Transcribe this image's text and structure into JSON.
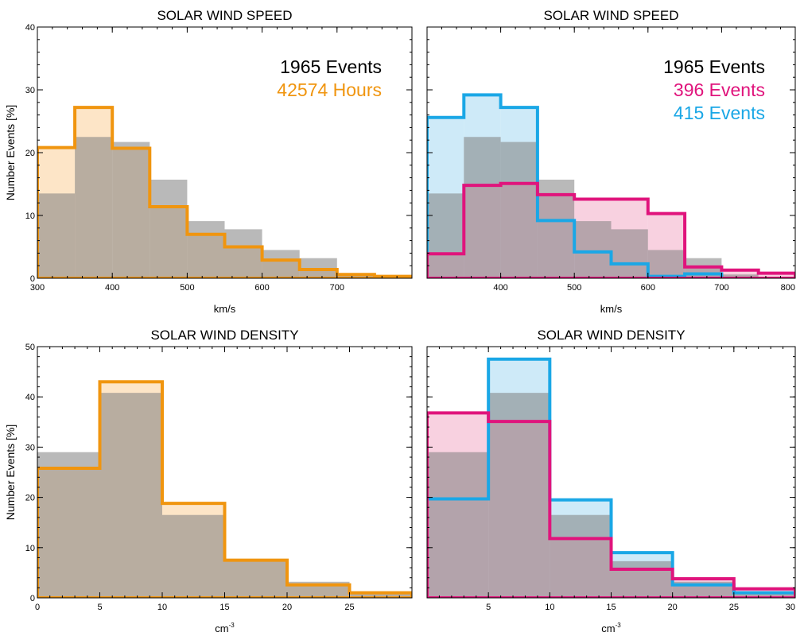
{
  "chart_data": [
    {
      "type": "bar",
      "title": "SOLAR WIND SPEED",
      "xlabel": "km/s",
      "ylabel": "Number Events [%]",
      "xlim": [
        300,
        800
      ],
      "ylim": [
        0,
        40
      ],
      "bin_edges": [
        300,
        350,
        400,
        450,
        500,
        550,
        600,
        650,
        700,
        750,
        800
      ],
      "xticks": [
        300,
        400,
        500,
        600,
        700
      ],
      "yticks": [
        0,
        10,
        20,
        30,
        40
      ],
      "annotations": [
        {
          "text": "1965 Events",
          "color": "#000000"
        },
        {
          "text": "42574 Hours",
          "color": "#f0950f"
        }
      ],
      "series": [
        {
          "color": "#808080",
          "style": "filled",
          "values": [
            13.5,
            22.5,
            21.7,
            15.7,
            9.1,
            7.8,
            4.5,
            3.2,
            0.6,
            0.1
          ]
        },
        {
          "color": "#f0950f",
          "style": "outlined-light-fill",
          "values": [
            20.8,
            27.2,
            20.7,
            11.4,
            7.0,
            5.0,
            2.9,
            1.4,
            0.6,
            0.3
          ]
        }
      ]
    },
    {
      "type": "bar",
      "title": "SOLAR WIND SPEED",
      "xlabel": "km/s",
      "ylabel": "",
      "xlim": [
        300,
        800
      ],
      "ylim": [
        0,
        40
      ],
      "bin_edges": [
        300,
        350,
        400,
        450,
        500,
        550,
        600,
        650,
        700,
        750,
        800
      ],
      "xticks": [
        400,
        500,
        600,
        700,
        800
      ],
      "yticks": [
        0,
        10,
        20,
        30,
        40
      ],
      "annotations": [
        {
          "text": "1965 Events",
          "color": "#000000"
        },
        {
          "text": "396 Events",
          "color": "#e0147c"
        },
        {
          "text": "415 Events",
          "color": "#1aa7e6"
        }
      ],
      "series": [
        {
          "color": "#808080",
          "style": "filled",
          "values": [
            13.5,
            22.5,
            21.7,
            15.7,
            9.1,
            7.8,
            4.5,
            3.2,
            0.6,
            0.1
          ]
        },
        {
          "color": "#1aa7e6",
          "style": "outlined-light-fill",
          "values": [
            25.6,
            29.2,
            27.2,
            9.2,
            4.2,
            2.3,
            0.3,
            0.7,
            0.0,
            0.0
          ]
        },
        {
          "color": "#e0147c",
          "style": "outlined-light-fill",
          "values": [
            3.9,
            14.8,
            15.1,
            13.3,
            12.6,
            12.6,
            10.3,
            1.8,
            1.3,
            0.8
          ]
        }
      ]
    },
    {
      "type": "bar",
      "title": "SOLAR WIND DENSITY",
      "xlabel": "cm",
      "xlabel_sup": "-3",
      "ylabel": "Number Events [%]",
      "xlim": [
        0,
        30
      ],
      "ylim": [
        0,
        50
      ],
      "bin_edges": [
        0,
        5,
        10,
        15,
        20,
        25,
        30
      ],
      "xticks": [
        0,
        5,
        10,
        15,
        20,
        25
      ],
      "yticks": [
        0,
        10,
        20,
        30,
        40,
        50
      ],
      "annotations": [],
      "series": [
        {
          "color": "#808080",
          "style": "filled",
          "values": [
            29.0,
            40.8,
            16.5,
            7.3,
            3.2,
            1.3
          ]
        },
        {
          "color": "#f0950f",
          "style": "outlined-light-fill",
          "values": [
            25.8,
            43.0,
            18.8,
            7.5,
            2.6,
            1.0
          ]
        }
      ]
    },
    {
      "type": "bar",
      "title": "SOLAR WIND DENSITY",
      "xlabel": "cm",
      "xlabel_sup": "-3",
      "ylabel": "",
      "xlim": [
        0,
        30
      ],
      "ylim": [
        0,
        50
      ],
      "bin_edges": [
        0,
        5,
        10,
        15,
        20,
        25,
        30
      ],
      "xticks": [
        5,
        10,
        15,
        20,
        25,
        30
      ],
      "yticks": [
        0,
        10,
        20,
        30,
        40,
        50
      ],
      "annotations": [],
      "series": [
        {
          "color": "#808080",
          "style": "filled",
          "values": [
            29.0,
            40.8,
            16.5,
            7.3,
            3.2,
            1.3
          ]
        },
        {
          "color": "#1aa7e6",
          "style": "outlined-light-fill",
          "values": [
            19.7,
            47.5,
            19.5,
            9.0,
            2.6,
            1.0
          ]
        },
        {
          "color": "#e0147c",
          "style": "outlined-light-fill",
          "values": [
            36.8,
            35.1,
            11.8,
            5.7,
            3.8,
            1.8
          ]
        }
      ]
    }
  ]
}
